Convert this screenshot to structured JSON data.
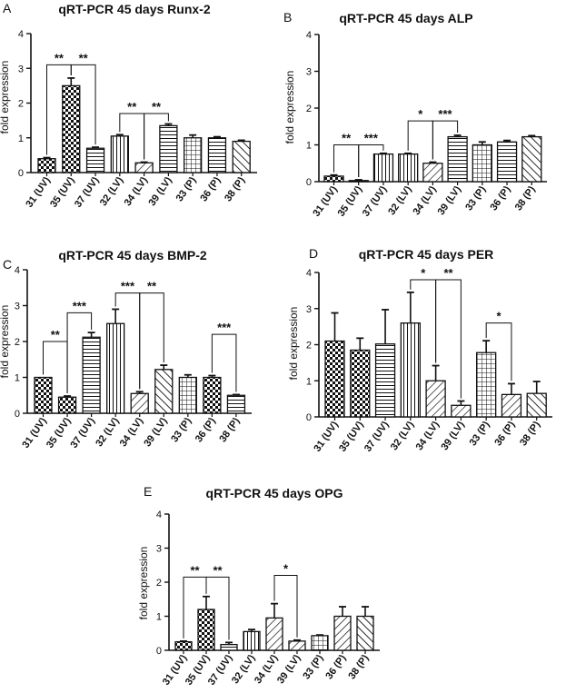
{
  "chart_data": [
    {
      "panel": "A",
      "type": "bar",
      "title": "qRT-PCR 45 days Runx-2",
      "ylabel": "fold expression",
      "ylim": [
        0,
        4
      ],
      "yticks": [
        0,
        1,
        2,
        3,
        4
      ],
      "categories": [
        "31 (UV)",
        "35 (UV)",
        "37 (UV)",
        "32 (LV)",
        "34 (LV)",
        "39 (LV)",
        "33 (P)",
        "36 (P)",
        "38 (P)"
      ],
      "values": [
        0.4,
        2.5,
        0.7,
        1.05,
        0.28,
        1.35,
        1.0,
        1.0,
        0.9
      ],
      "errors": [
        0.03,
        0.22,
        0.03,
        0.04,
        0.02,
        0.05,
        0.08,
        0.03,
        0.03
      ],
      "patterns": [
        "check",
        "check",
        "hline",
        "vline",
        "rdiag",
        "hline",
        "grid",
        "hline",
        "ldiag"
      ],
      "significance": [
        {
          "label": "**",
          "from": 0,
          "to": 1,
          "level": 3.1
        },
        {
          "label": "**",
          "from": 1,
          "to": 2,
          "level": 3.1
        },
        {
          "label": "**",
          "from": 3,
          "to": 4,
          "level": 1.7
        },
        {
          "label": "**",
          "from": 4,
          "to": 5,
          "level": 1.7
        }
      ]
    },
    {
      "panel": "B",
      "type": "bar",
      "title": "qRT-PCR 45 days ALP",
      "ylabel": "fold expression",
      "ylim": [
        0,
        4
      ],
      "yticks": [
        0,
        1,
        2,
        3,
        4
      ],
      "categories": [
        "31 (UV)",
        "35 (UV)",
        "37 (UV)",
        "32 (LV)",
        "34 (LV)",
        "39 (LV)",
        "33 (P)",
        "36 (P)",
        "38 (P)"
      ],
      "values": [
        0.15,
        0.03,
        0.75,
        0.75,
        0.5,
        1.22,
        1.0,
        1.08,
        1.22
      ],
      "errors": [
        0.03,
        0.02,
        0.02,
        0.02,
        0.03,
        0.04,
        0.08,
        0.04,
        0.03
      ],
      "patterns": [
        "check",
        "check",
        "vline",
        "vline",
        "rdiag",
        "hline",
        "grid",
        "hline",
        "ldiag"
      ],
      "significance": [
        {
          "label": "**",
          "from": 0,
          "to": 1,
          "level": 1.0
        },
        {
          "label": "***",
          "from": 1,
          "to": 2,
          "level": 1.0
        },
        {
          "label": "*",
          "from": 3,
          "to": 4,
          "level": 1.65
        },
        {
          "label": "***",
          "from": 4,
          "to": 5,
          "level": 1.65
        }
      ]
    },
    {
      "panel": "C",
      "type": "bar",
      "title": "qRT-PCR 45 days BMP-2",
      "ylabel": "fold expression",
      "ylim": [
        0,
        4
      ],
      "yticks": [
        0,
        1,
        2,
        3,
        4
      ],
      "categories": [
        "31 (UV)",
        "35 (UV)",
        "37 (UV)",
        "32 (LV)",
        "34 (LV)",
        "39 (LV)",
        "33 (P)",
        "36 (P)",
        "38 (P)"
      ],
      "values": [
        1.0,
        0.45,
        2.12,
        2.5,
        0.55,
        1.22,
        1.0,
        1.0,
        0.5
      ],
      "errors": [
        0.0,
        0.03,
        0.13,
        0.4,
        0.05,
        0.12,
        0.07,
        0.05,
        0.02
      ],
      "patterns": [
        "check",
        "check",
        "hline",
        "vline",
        "rdiag",
        "ldiag",
        "grid",
        "check",
        "hline"
      ],
      "significance": [
        {
          "label": "**",
          "from": 0,
          "to": 1,
          "level": 2.0
        },
        {
          "label": "***",
          "from": 1,
          "to": 2,
          "level": 2.8
        },
        {
          "label": "***",
          "from": 3,
          "to": 4,
          "level": 3.35
        },
        {
          "label": "**",
          "from": 4,
          "to": 5,
          "level": 3.35
        },
        {
          "label": "***",
          "from": 7,
          "to": 8,
          "level": 2.2
        }
      ]
    },
    {
      "panel": "D",
      "type": "bar",
      "title": "qRT-PCR 45 days PER",
      "ylabel": "fold expression",
      "ylim": [
        0,
        4
      ],
      "yticks": [
        0,
        1,
        2,
        3,
        4
      ],
      "categories": [
        "31 (UV)",
        "35 (UV)",
        "37 (UV)",
        "32 (LV)",
        "34 (LV)",
        "39 (LV)",
        "33 (P)",
        "36 (P)",
        "38 (P)"
      ],
      "values": [
        2.1,
        1.85,
        2.02,
        2.6,
        1.0,
        0.32,
        1.78,
        0.62,
        0.65
      ],
      "errors": [
        0.78,
        0.33,
        0.95,
        0.85,
        0.42,
        0.12,
        0.33,
        0.3,
        0.33
      ],
      "patterns": [
        "check",
        "check",
        "hline",
        "vline",
        "rdiag",
        "rdiag",
        "grid",
        "rdiag",
        "ldiag"
      ],
      "significance": [
        {
          "label": "*",
          "from": 3,
          "to": 4,
          "level": 3.8
        },
        {
          "label": "**",
          "from": 4,
          "to": 5,
          "level": 3.8
        },
        {
          "label": "*",
          "from": 6,
          "to": 7,
          "level": 2.6
        }
      ]
    },
    {
      "panel": "E",
      "type": "bar",
      "title": "qRT-PCR 45 days OPG",
      "ylabel": "fold expression",
      "ylim": [
        0,
        4
      ],
      "yticks": [
        0,
        1,
        2,
        3,
        4
      ],
      "categories": [
        "31 (UV)",
        "35 (UV)",
        "37 (UV)",
        "32 (LV)",
        "34 (LV)",
        "39 (LV)",
        "33 (P)",
        "36 (P)",
        "38 (P)"
      ],
      "values": [
        0.25,
        1.2,
        0.17,
        0.55,
        0.95,
        0.27,
        0.43,
        1.0,
        1.0
      ],
      "errors": [
        0.02,
        0.38,
        0.06,
        0.06,
        0.42,
        0.03,
        0.02,
        0.28,
        0.28
      ],
      "patterns": [
        "check",
        "check",
        "hline",
        "vline",
        "rdiag",
        "rdiag",
        "grid",
        "rdiag",
        "ldiag"
      ],
      "significance": [
        {
          "label": "**",
          "from": 0,
          "to": 1,
          "level": 2.15
        },
        {
          "label": "**",
          "from": 1,
          "to": 2,
          "level": 2.15
        },
        {
          "label": "*",
          "from": 4,
          "to": 5,
          "level": 2.2
        }
      ]
    }
  ]
}
